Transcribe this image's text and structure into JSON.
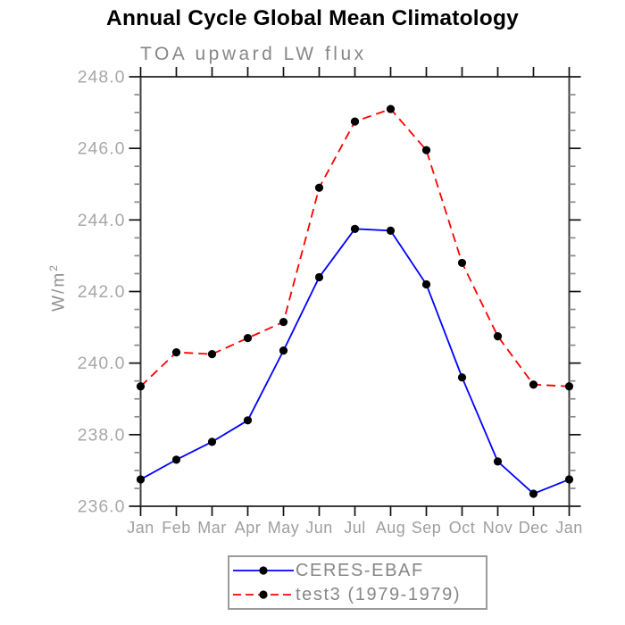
{
  "chart": {
    "title": "Annual Cycle Global Mean Climatology",
    "subtitle": "TOA upward LW flux",
    "ylabel": "W/m²"
  },
  "chart_data": {
    "type": "line",
    "title": "Annual Cycle Global Mean Climatology",
    "subtitle": "TOA upward LW flux",
    "xlabel": "",
    "ylabel": "W/m^2",
    "categories": [
      "Jan",
      "Feb",
      "Mar",
      "Apr",
      "May",
      "Jun",
      "Jul",
      "Aug",
      "Sep",
      "Oct",
      "Nov",
      "Dec",
      "Jan"
    ],
    "series": [
      {
        "name": "CERES-EBAF",
        "color": "#0000ff",
        "line_style": "solid",
        "marker": "filled-circle",
        "marker_color": "#000000",
        "values": [
          236.75,
          237.3,
          237.8,
          238.4,
          240.35,
          242.4,
          243.75,
          243.7,
          242.2,
          239.6,
          237.25,
          236.35,
          236.75
        ]
      },
      {
        "name": "test3 (1979-1979)",
        "color": "#ff0000",
        "line_style": "dashed",
        "marker": "filled-circle",
        "marker_color": "#000000",
        "values": [
          239.35,
          240.3,
          240.25,
          240.7,
          241.15,
          244.9,
          246.75,
          247.1,
          245.95,
          242.8,
          240.75,
          239.4,
          239.35
        ]
      }
    ],
    "ylim": [
      236.0,
      248.0
    ],
    "ytick_major_step": 2.0,
    "ytick_minor_step": 0.5,
    "ytick_labels": [
      "236.0",
      "238.0",
      "240.0",
      "242.0",
      "244.0",
      "246.0",
      "248.0"
    ],
    "grid": false,
    "legend_position": "bottom-center",
    "axis_color": "#3c3c3c",
    "tick_label_color": "#a8a8a8",
    "month_label_color": "#9e9e9e"
  }
}
